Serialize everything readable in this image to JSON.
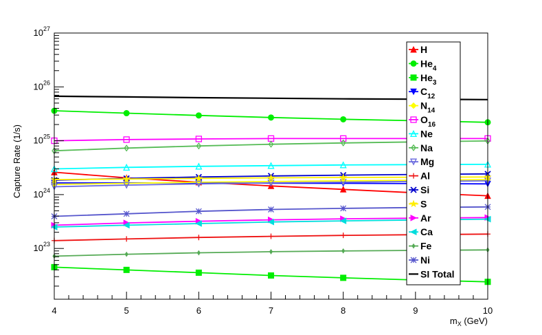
{
  "chart_data": {
    "type": "line",
    "title": "",
    "xlabel": "m",
    "xlabel_sub": "X",
    "xlabel_unit": " (GeV)",
    "ylabel": "Capture Rate (1/s)",
    "y_scale": "log",
    "xlim": [
      4,
      10
    ],
    "ylim": [
      3e+22,
      1e+27
    ],
    "legend_position": "top-right",
    "grid": false,
    "x_ticks": [
      4,
      5,
      6,
      7,
      8,
      9,
      10
    ],
    "x_tick_labels": [
      "4",
      "5",
      "6",
      "7",
      "8",
      "9",
      "10"
    ],
    "y_ticks": [
      {
        "value": 1e+23,
        "base": "10",
        "exp": "23"
      },
      {
        "value": 1e+24,
        "base": "10",
        "exp": "24"
      },
      {
        "value": 1e+25,
        "base": "10",
        "exp": "25"
      },
      {
        "value": 1e+26,
        "base": "10",
        "exp": "26"
      },
      {
        "value": 1e+27,
        "base": "10",
        "exp": "27"
      }
    ],
    "x": [
      4,
      5,
      6,
      7,
      8,
      9,
      10
    ],
    "series": [
      {
        "name": "H",
        "sub": "",
        "color": "#ff0000",
        "marker": "triangle",
        "values": [
          2.6e+24,
          2.05e+24,
          1.7e+24,
          1.45e+24,
          1.25e+24,
          1.08e+24,
          9.5e+23
        ]
      },
      {
        "name": "He",
        "sub": "4",
        "color": "#00ee00",
        "marker": "circle",
        "values": [
          3.6e+25,
          3.25e+25,
          2.95e+25,
          2.7e+25,
          2.5e+25,
          2.35e+25,
          2.2e+25
        ]
      },
      {
        "name": "He",
        "sub": "3",
        "color": "#00ee00",
        "marker": "square",
        "values": [
          4.5e+22,
          4e+22,
          3.55e+22,
          3.15e+22,
          2.85e+22,
          2.6e+22,
          2.4e+22
        ]
      },
      {
        "name": "C",
        "sub": "12",
        "color": "#0000ff",
        "marker": "triangle-down",
        "values": [
          1.65e+24,
          1.65e+24,
          1.65e+24,
          1.63e+24,
          1.62e+24,
          1.6e+24,
          1.58e+24
        ]
      },
      {
        "name": "N",
        "sub": "14",
        "color": "#ffff00",
        "marker": "diamond",
        "values": [
          1.55e+24,
          1.62e+24,
          1.7e+24,
          1.75e+24,
          1.8e+24,
          1.85e+24,
          1.9e+24
        ]
      },
      {
        "name": "O",
        "sub": "16",
        "color": "#ff00ff",
        "marker": "square-open",
        "values": [
          1e+25,
          1.05e+25,
          1.08e+25,
          1.1e+25,
          1.1e+25,
          1.1e+25,
          1.1e+25
        ]
      },
      {
        "name": "Ne",
        "sub": "",
        "color": "#00ffff",
        "marker": "triangle-open",
        "values": [
          3e+24,
          3.2e+24,
          3.35e+24,
          3.45e+24,
          3.55e+24,
          3.6e+24,
          3.65e+24
        ]
      },
      {
        "name": "Na",
        "sub": "",
        "color": "#55bb55",
        "marker": "diamond-open",
        "values": [
          6.5e+24,
          7.3e+24,
          8e+24,
          8.6e+24,
          9.1e+24,
          9.5e+24,
          9.9e+24
        ]
      },
      {
        "name": "Mg",
        "sub": "",
        "color": "#6666dd",
        "marker": "triangle-down-open",
        "values": [
          1.4e+24,
          1.5e+24,
          1.58e+24,
          1.65e+24,
          1.7e+24,
          1.75e+24,
          1.8e+24
        ]
      },
      {
        "name": "Al",
        "sub": "",
        "color": "#ee1111",
        "marker": "plus",
        "values": [
          1.4e+23,
          1.5e+23,
          1.6e+23,
          1.68e+23,
          1.75e+23,
          1.8e+23,
          1.85e+23
        ]
      },
      {
        "name": "Si",
        "sub": "",
        "color": "#0000cc",
        "marker": "cross",
        "values": [
          1.85e+24,
          2e+24,
          2.12e+24,
          2.22e+24,
          2.3e+24,
          2.37e+24,
          2.42e+24
        ]
      },
      {
        "name": "S",
        "sub": "",
        "color": "#ffee00",
        "marker": "star",
        "values": [
          1.9e+24,
          1.95e+24,
          2e+24,
          2.05e+24,
          2.08e+24,
          2.1e+24,
          2.12e+24
        ]
      },
      {
        "name": "Ar",
        "sub": "",
        "color": "#ff00ff",
        "marker": "triangle-right",
        "values": [
          2.7e+23,
          2.98e+23,
          3.2e+23,
          3.4e+23,
          3.55e+23,
          3.65e+23,
          3.75e+23
        ]
      },
      {
        "name": "Ca",
        "sub": "",
        "color": "#00dddd",
        "marker": "triangle-left",
        "values": [
          2.5e+23,
          2.7e+23,
          2.9e+23,
          3.1e+23,
          3.25e+23,
          3.38e+23,
          3.5e+23
        ]
      },
      {
        "name": "Fe",
        "sub": "",
        "color": "#55aa55",
        "marker": "diamond-small",
        "values": [
          7.2e+22,
          7.8e+22,
          8.3e+22,
          8.7e+22,
          9e+22,
          9.2e+22,
          9.4e+22
        ]
      },
      {
        "name": "Ni",
        "sub": "",
        "color": "#5555cc",
        "marker": "asterisk",
        "values": [
          3.95e+23,
          4.4e+23,
          4.9e+23,
          5.3e+23,
          5.55e+23,
          5.75e+23,
          5.9e+23
        ]
      },
      {
        "name": "SI Total",
        "sub": "",
        "color": "#000000",
        "marker": "none",
        "values": [
          6.7e+25,
          6.5e+25,
          6.3e+25,
          6.15e+25,
          6e+25,
          5.9e+25,
          5.8e+25
        ]
      }
    ]
  }
}
